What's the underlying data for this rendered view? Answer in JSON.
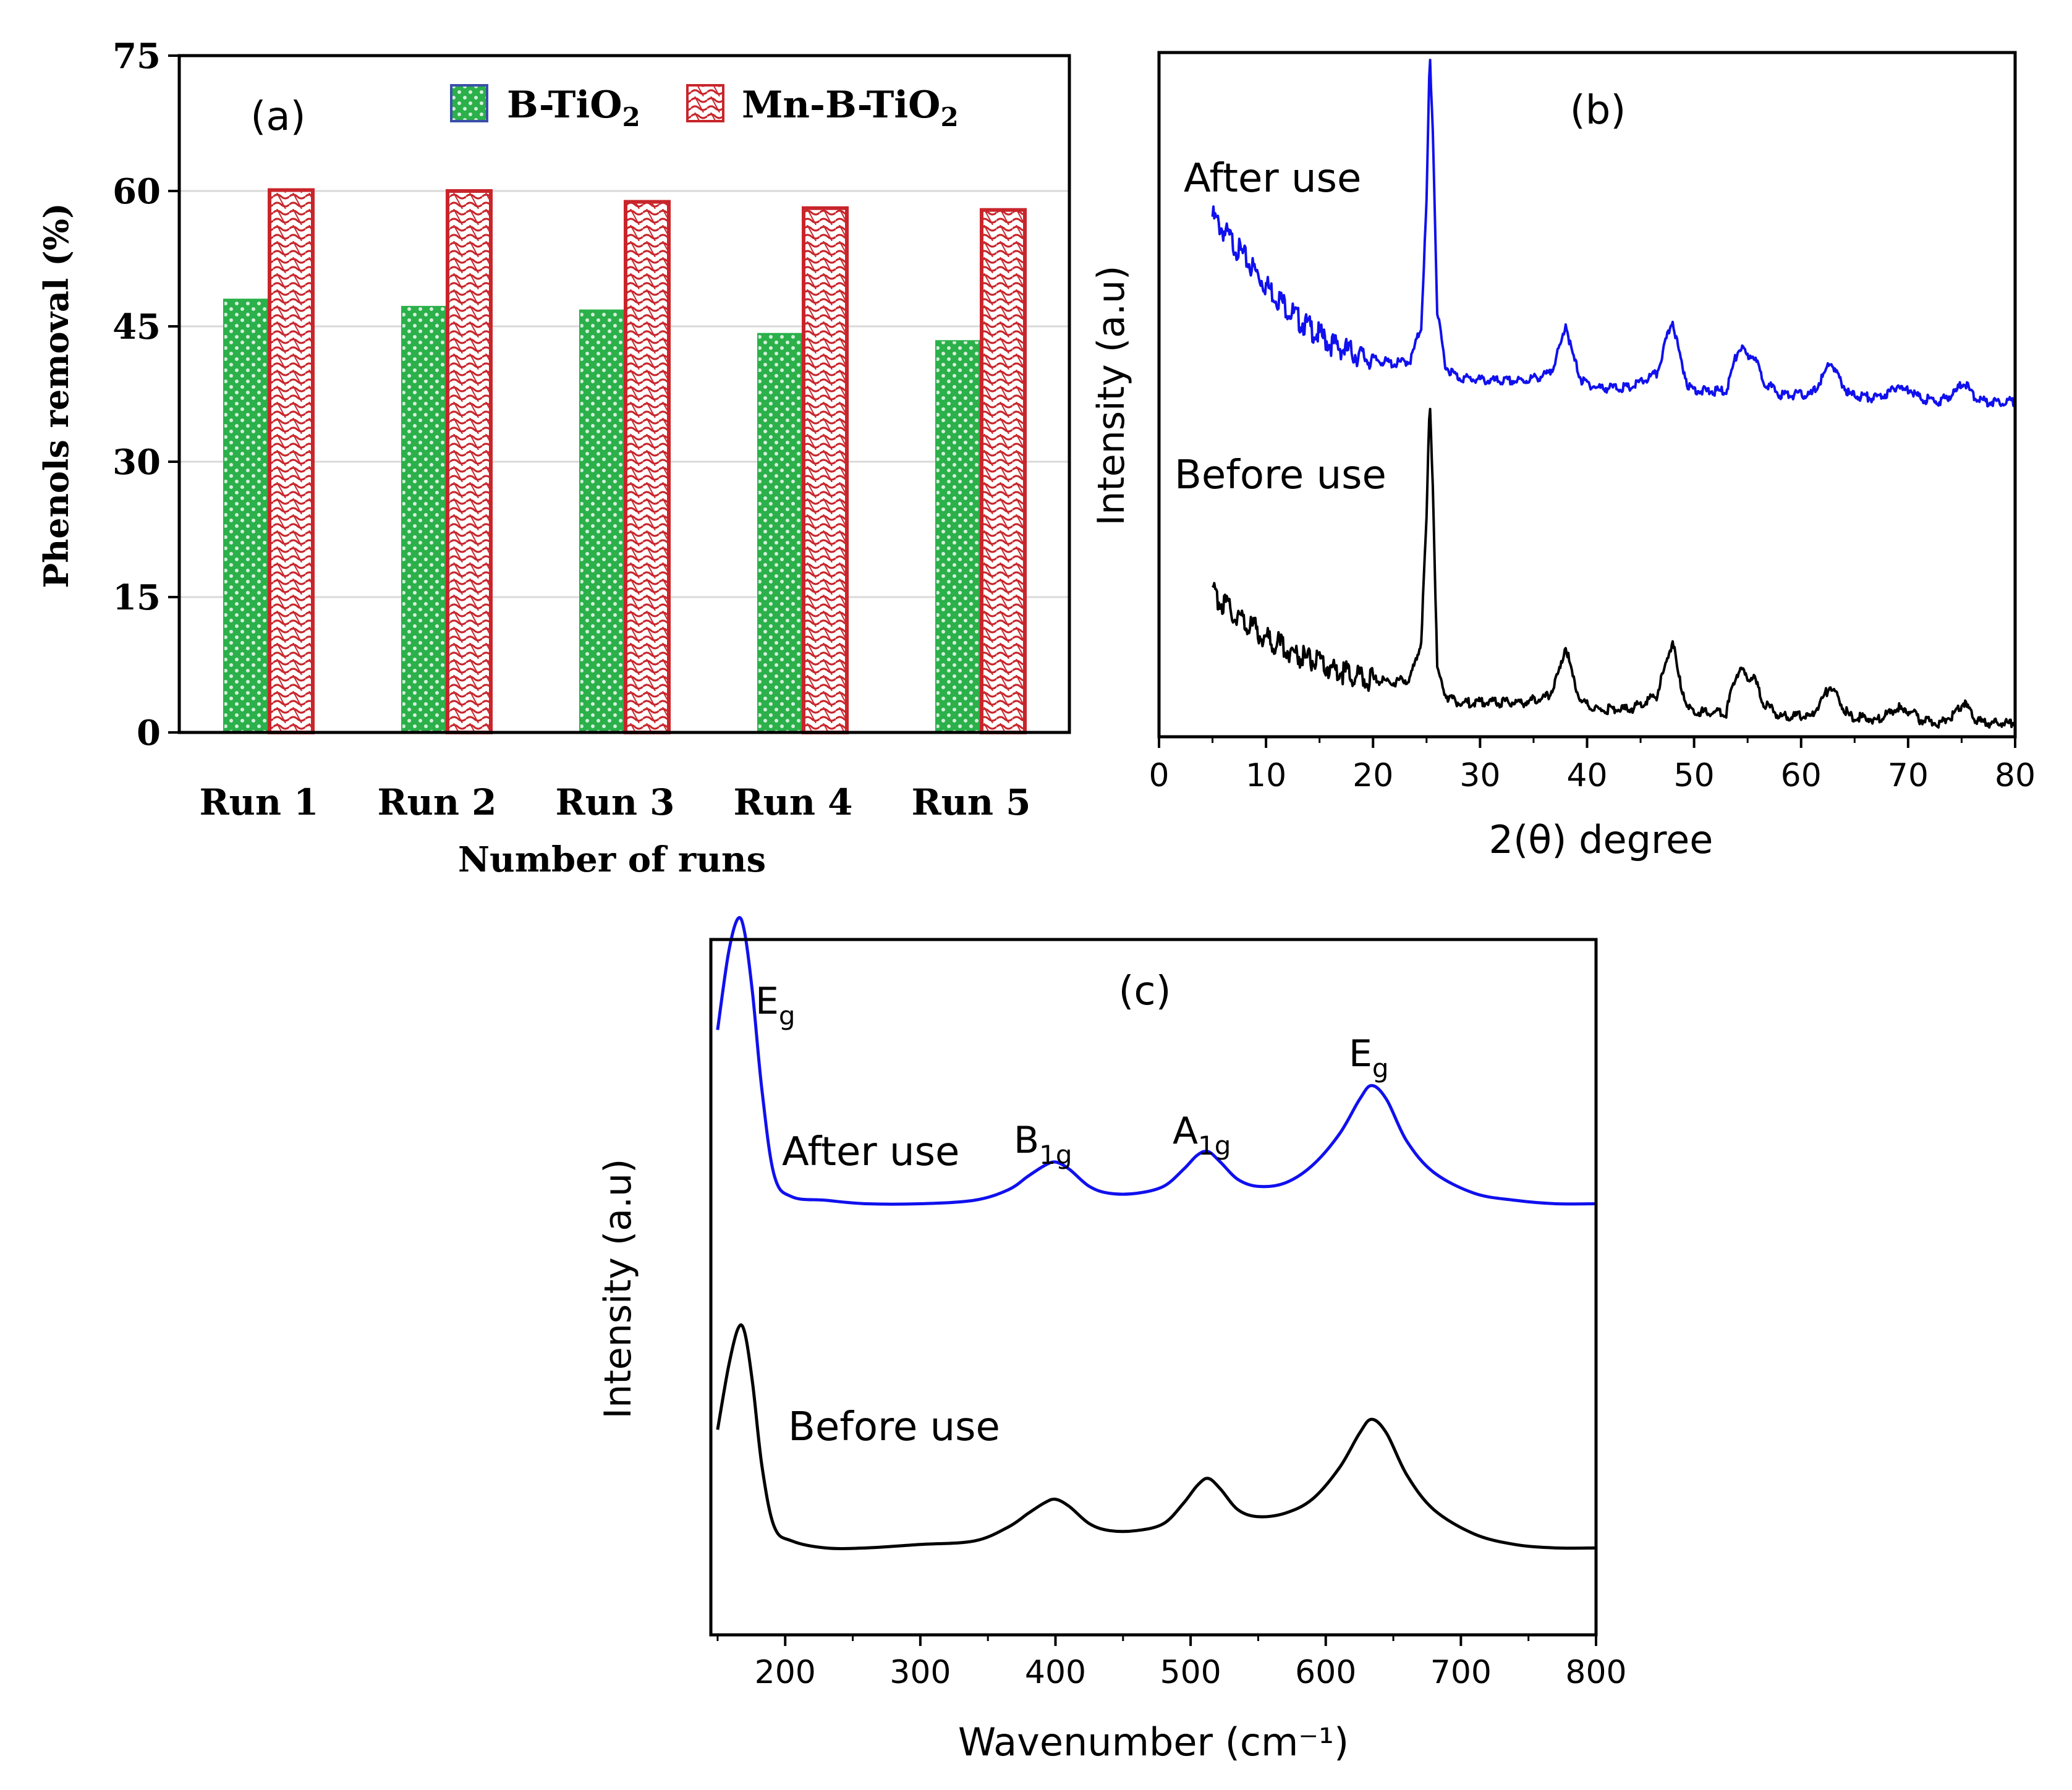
{
  "chart_data": [
    {
      "panel": "(a)",
      "type": "bar",
      "categories": [
        "Run 1",
        "Run 2",
        "Run 3",
        "Run 4",
        "Run 5"
      ],
      "series": [
        {
          "name": "B-TiO",
          "subscript": "2",
          "color": "#2bb04a",
          "values": [
            48,
            47.2,
            46.8,
            44.2,
            43.4
          ]
        },
        {
          "name": "Mn-B-TiO",
          "subscript": "2",
          "color": "#c8252b",
          "values": [
            60.1,
            60,
            58.8,
            58.1,
            57.9
          ]
        }
      ],
      "xlabel": "Number of runs",
      "ylabel": "Phenols removal (%)",
      "ylim": [
        0,
        75
      ],
      "yticks": [
        "0",
        "15",
        "30",
        "45",
        "60",
        "75"
      ],
      "grid": true,
      "legend": "top-right"
    },
    {
      "panel": "(b)",
      "type": "line",
      "xlabel": "2(θ) degree",
      "ylabel": "Intensity (a.u)",
      "xlim": [
        0,
        80
      ],
      "xticks": [
        "0",
        "10",
        "20",
        "30",
        "40",
        "50",
        "60",
        "70",
        "80"
      ],
      "series": [
        {
          "name": "After use",
          "color": "#1010ee",
          "x": [
            5,
            7,
            10,
            13,
            16,
            19,
            22,
            23.5,
            24.5,
            25,
            25.3,
            25.6,
            26,
            26.8,
            28,
            31,
            34,
            36.5,
            37.5,
            38,
            38.6,
            39.5,
            41,
            44,
            46.5,
            47.6,
            48,
            48.6,
            49.5,
            51,
            53,
            53.8,
            54.3,
            55,
            55.5,
            56.5,
            58,
            61,
            62.2,
            62.7,
            63.3,
            64.5,
            67,
            68.5,
            69,
            69.6,
            70.2,
            71,
            73,
            74.5,
            75.2,
            76,
            77,
            80
          ],
          "y": [
            0.76,
            0.72,
            0.66,
            0.61,
            0.575,
            0.555,
            0.545,
            0.55,
            0.6,
            0.78,
            1.0,
            0.88,
            0.62,
            0.54,
            0.525,
            0.52,
            0.52,
            0.53,
            0.57,
            0.605,
            0.56,
            0.52,
            0.51,
            0.51,
            0.53,
            0.59,
            0.61,
            0.56,
            0.51,
            0.505,
            0.505,
            0.55,
            0.57,
            0.555,
            0.56,
            0.52,
            0.5,
            0.5,
            0.53,
            0.55,
            0.53,
            0.5,
            0.495,
            0.505,
            0.515,
            0.505,
            0.51,
            0.495,
            0.49,
            0.505,
            0.52,
            0.5,
            0.49,
            0.49
          ]
        },
        {
          "name": "Before use",
          "color": "#000000",
          "x": [
            5,
            7,
            10,
            13,
            16,
            19,
            22,
            23.5,
            24.5,
            25,
            25.3,
            25.6,
            26,
            26.8,
            28,
            31,
            34,
            36.5,
            37.5,
            38,
            38.6,
            39.5,
            41,
            44,
            46.5,
            47.6,
            48,
            48.6,
            49.5,
            51,
            53,
            53.8,
            54.3,
            55,
            55.5,
            56.5,
            58,
            61,
            62.2,
            62.7,
            63.3,
            64.5,
            67,
            68.5,
            69,
            69.6,
            70.2,
            71,
            73,
            74.5,
            75.2,
            76,
            77,
            80
          ],
          "y": [
            0.21,
            0.18,
            0.145,
            0.12,
            0.1,
            0.085,
            0.08,
            0.085,
            0.14,
            0.32,
            0.5,
            0.36,
            0.1,
            0.06,
            0.05,
            0.05,
            0.05,
            0.06,
            0.1,
            0.135,
            0.09,
            0.05,
            0.04,
            0.04,
            0.06,
            0.12,
            0.14,
            0.085,
            0.04,
            0.035,
            0.035,
            0.085,
            0.1,
            0.085,
            0.09,
            0.05,
            0.03,
            0.03,
            0.06,
            0.075,
            0.06,
            0.03,
            0.025,
            0.035,
            0.045,
            0.035,
            0.04,
            0.025,
            0.02,
            0.035,
            0.05,
            0.03,
            0.02,
            0.02
          ]
        }
      ],
      "annotations": [
        "(b)",
        "After use",
        "Before use"
      ]
    },
    {
      "panel": "(c)",
      "type": "line",
      "xlabel": "Wavenumber (cm⁻¹)",
      "ylabel": "Intensity (a.u)",
      "xlim": [
        145,
        800
      ],
      "xticks": [
        "200",
        "300",
        "400",
        "500",
        "600",
        "700",
        "800"
      ],
      "series": [
        {
          "name": "After use",
          "color": "#1010ee",
          "x": [
            150,
            158,
            165,
            170,
            176,
            183,
            192,
            205,
            230,
            260,
            300,
            340,
            365,
            380,
            392,
            400,
            410,
            425,
            440,
            460,
            480,
            495,
            505,
            513,
            522,
            535,
            550,
            570,
            590,
            610,
            625,
            634,
            645,
            660,
            680,
            710,
            740,
            770,
            800
          ],
          "y": [
            0.87,
            0.98,
            1.03,
            1.01,
            0.92,
            0.78,
            0.66,
            0.63,
            0.625,
            0.62,
            0.62,
            0.625,
            0.64,
            0.66,
            0.675,
            0.68,
            0.67,
            0.645,
            0.635,
            0.635,
            0.645,
            0.67,
            0.69,
            0.695,
            0.68,
            0.655,
            0.645,
            0.65,
            0.675,
            0.72,
            0.77,
            0.79,
            0.77,
            0.71,
            0.665,
            0.635,
            0.625,
            0.62,
            0.62
          ]
        },
        {
          "name": "Before use",
          "color": "#000000",
          "x": [
            150,
            158,
            165,
            170,
            176,
            183,
            192,
            205,
            230,
            260,
            300,
            340,
            365,
            380,
            392,
            400,
            410,
            425,
            440,
            460,
            480,
            495,
            505,
            513,
            522,
            535,
            550,
            570,
            590,
            610,
            625,
            634,
            645,
            660,
            680,
            710,
            740,
            770,
            800
          ],
          "y": [
            0.295,
            0.385,
            0.44,
            0.435,
            0.36,
            0.24,
            0.155,
            0.135,
            0.125,
            0.125,
            0.13,
            0.135,
            0.155,
            0.175,
            0.19,
            0.195,
            0.185,
            0.16,
            0.15,
            0.15,
            0.16,
            0.19,
            0.215,
            0.225,
            0.21,
            0.18,
            0.17,
            0.175,
            0.195,
            0.24,
            0.29,
            0.31,
            0.29,
            0.23,
            0.18,
            0.145,
            0.13,
            0.125,
            0.125
          ]
        }
      ],
      "annotations": [
        "(c)",
        "After use",
        "Before use"
      ],
      "peak_labels": [
        {
          "base": "E",
          "sub": "g",
          "at": 170
        },
        {
          "base": "B",
          "sub": "1g",
          "at": 400
        },
        {
          "base": "A",
          "sub": "1g",
          "at": 513
        },
        {
          "base": "E",
          "sub": "g",
          "at": 634
        }
      ]
    }
  ]
}
